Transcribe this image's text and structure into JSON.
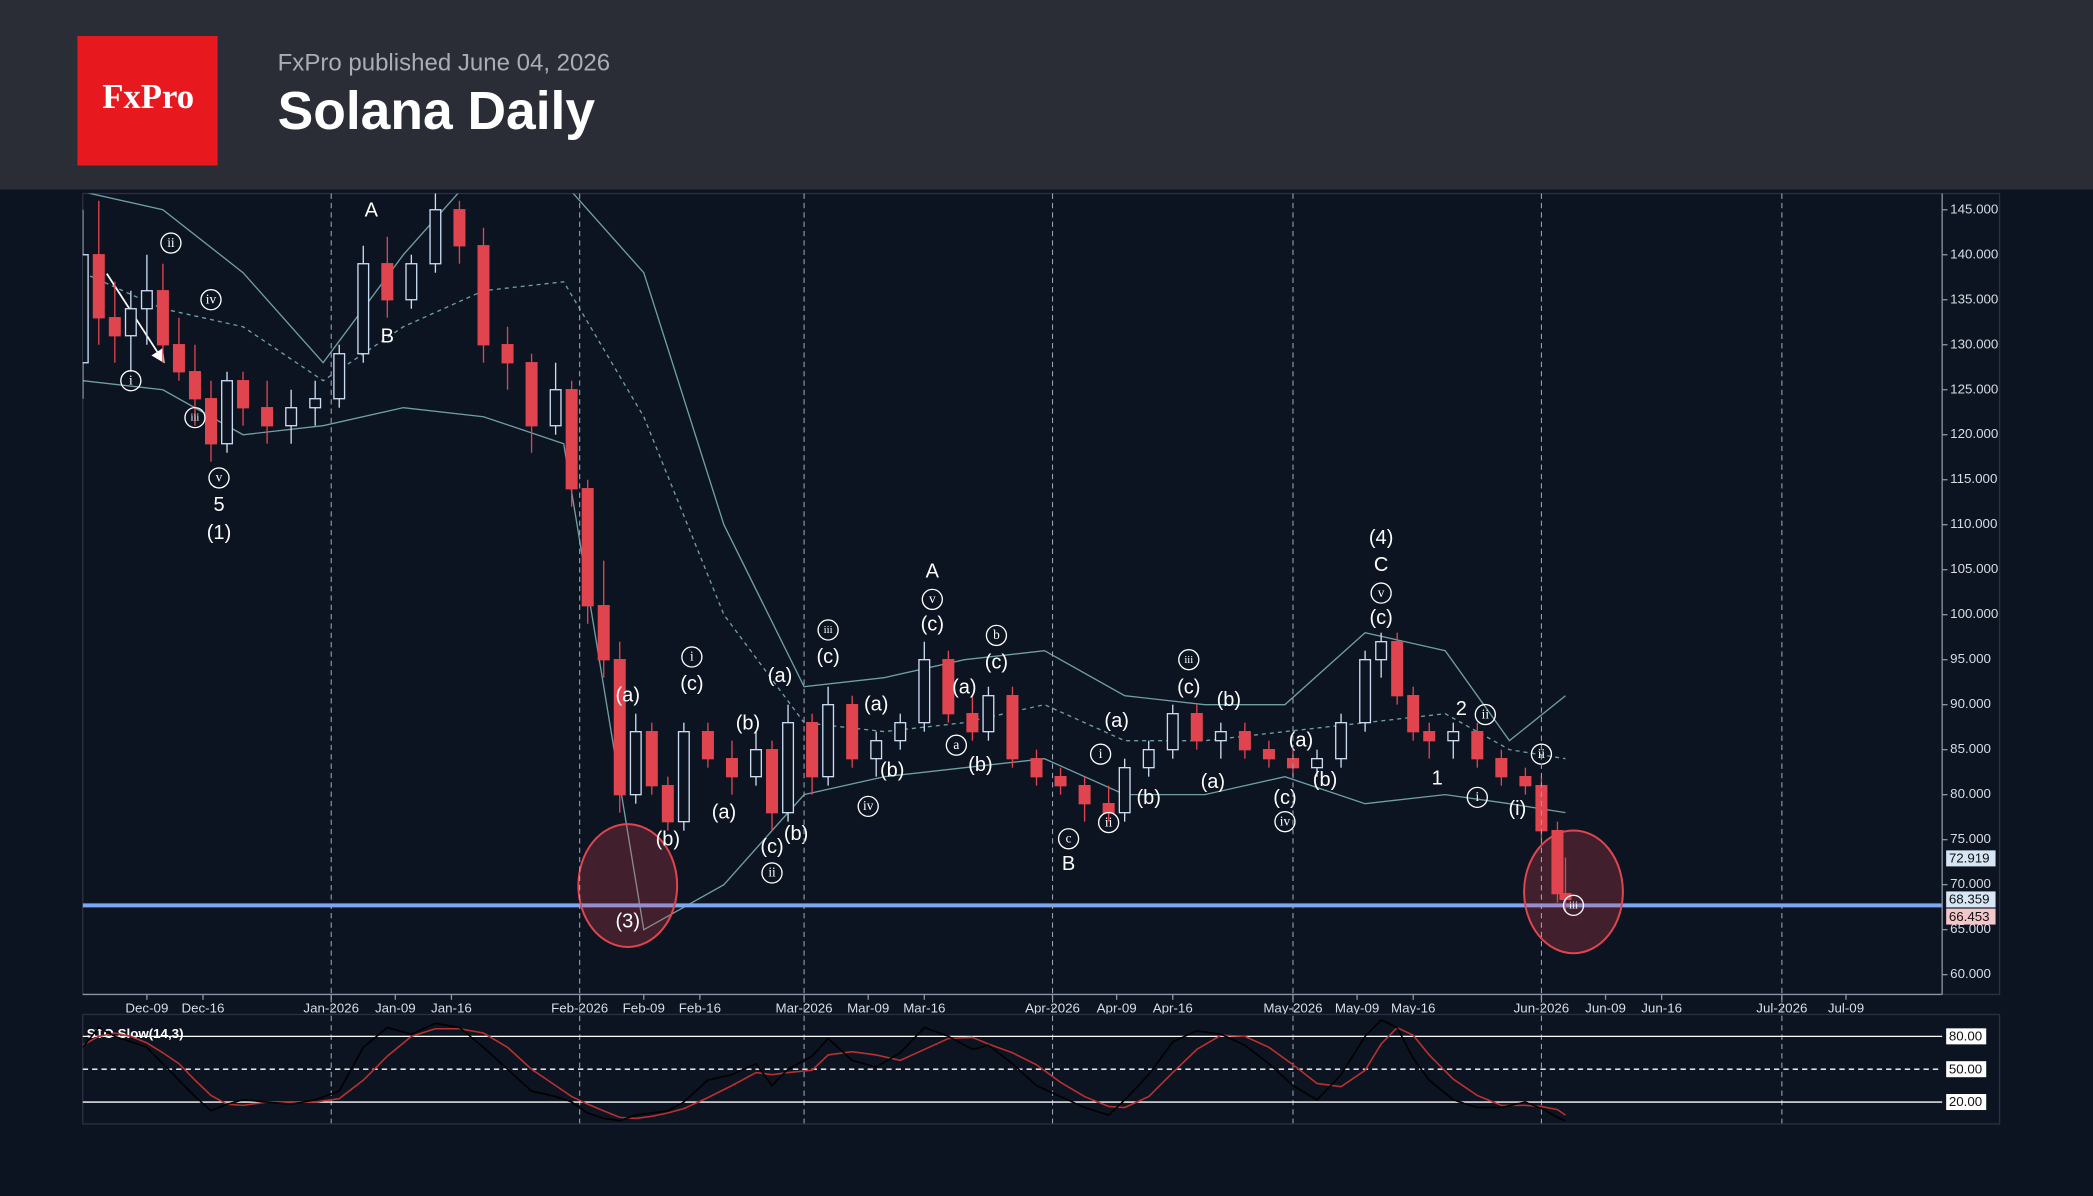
{
  "header": {
    "logo": "FxPro",
    "published": "FxPro published June 04, 2026",
    "title": "Solana Daily"
  },
  "chart_data": {
    "type": "candlestick",
    "x": [
      0,
      2,
      4,
      6,
      8,
      10,
      12,
      14,
      16,
      18,
      20,
      23,
      26,
      29,
      32,
      35,
      38,
      41,
      44,
      47,
      50,
      53,
      56,
      59,
      61,
      63,
      65,
      67,
      69,
      71,
      73,
      75,
      78,
      81,
      84,
      86,
      88,
      91,
      93,
      96,
      99,
      102,
      105,
      108,
      111,
      113,
      116,
      119,
      122,
      125,
      128,
      130,
      133,
      136,
      139,
      142,
      145,
      148,
      151,
      154,
      157,
      160,
      162,
      164,
      166,
      168,
      171,
      174,
      177,
      180,
      182,
      184,
      185
    ],
    "open": [
      128,
      140,
      133,
      131,
      134,
      136,
      130,
      127,
      124,
      119,
      126,
      123,
      121,
      123,
      124,
      129,
      139,
      135,
      139,
      145,
      141,
      130,
      128,
      121,
      125,
      114,
      101,
      95,
      80,
      87,
      81,
      77,
      87,
      84,
      82,
      85,
      78,
      88,
      82,
      90,
      84,
      86,
      88,
      95,
      89,
      87,
      91,
      84,
      82,
      81,
      79,
      78,
      83,
      85,
      89,
      86,
      87,
      85,
      84,
      83,
      84,
      88,
      95,
      97,
      91,
      87,
      86,
      87,
      84,
      82,
      81,
      76,
      69
    ],
    "high": [
      145,
      146,
      137,
      136,
      140,
      139,
      133,
      130,
      126,
      127,
      127,
      126,
      125,
      126,
      130,
      141,
      142,
      140,
      147,
      146,
      143,
      132,
      129,
      128,
      126,
      115,
      106,
      97,
      89,
      88,
      82,
      88,
      88,
      86,
      87,
      86,
      90,
      89,
      92,
      91,
      87,
      89,
      97,
      96,
      91,
      92,
      92,
      85,
      83,
      82,
      81,
      84,
      86,
      90,
      90,
      88,
      88,
      86,
      85,
      85,
      89,
      96,
      98,
      98,
      92,
      88,
      88,
      88,
      85,
      83,
      82,
      77,
      73
    ],
    "low": [
      124,
      130,
      128,
      127,
      130,
      128,
      126,
      121,
      117,
      118,
      121,
      119,
      119,
      121,
      123,
      128,
      133,
      134,
      138,
      139,
      128,
      125,
      118,
      120,
      112,
      99,
      93,
      78,
      79,
      80,
      76,
      76,
      83,
      80,
      81,
      76,
      77,
      80,
      81,
      83,
      82,
      85,
      87,
      88,
      86,
      86,
      83,
      81,
      80,
      77,
      77,
      77,
      82,
      84,
      85,
      84,
      84,
      83,
      82,
      82,
      83,
      87,
      93,
      90,
      86,
      84,
      84,
      83,
      81,
      80,
      75,
      68,
      67
    ],
    "close": [
      140,
      133,
      131,
      134,
      136,
      130,
      127,
      124,
      119,
      126,
      123,
      121,
      123,
      124,
      129,
      139,
      135,
      139,
      145,
      141,
      130,
      128,
      121,
      125,
      114,
      101,
      95,
      80,
      87,
      81,
      77,
      87,
      84,
      82,
      85,
      78,
      88,
      82,
      90,
      84,
      86,
      88,
      95,
      89,
      87,
      91,
      84,
      82,
      81,
      79,
      78,
      83,
      85,
      89,
      86,
      87,
      85,
      84,
      83,
      84,
      88,
      95,
      97,
      91,
      87,
      86,
      87,
      84,
      82,
      81,
      76,
      69,
      68.359
    ],
    "up_color": "#c9dcf2",
    "down_color": "#e0454f",
    "xlim": [
      0,
      232
    ],
    "xticks": [
      {
        "value": 8,
        "label": "Dec-09"
      },
      {
        "value": 15,
        "label": "Dec-16"
      },
      {
        "value": 31,
        "label": "Jan-2026"
      },
      {
        "value": 39,
        "label": "Jan-09"
      },
      {
        "value": 46,
        "label": "Jan-16"
      },
      {
        "value": 62,
        "label": "Feb-2026"
      },
      {
        "value": 70,
        "label": "Feb-09"
      },
      {
        "value": 77,
        "label": "Feb-16"
      },
      {
        "value": 90,
        "label": "Mar-2026"
      },
      {
        "value": 98,
        "label": "Mar-09"
      },
      {
        "value": 105,
        "label": "Mar-16"
      },
      {
        "value": 121,
        "label": "Apr-2026"
      },
      {
        "value": 129,
        "label": "Apr-09"
      },
      {
        "value": 136,
        "label": "Apr-16"
      },
      {
        "value": 151,
        "label": "May-2026"
      },
      {
        "value": 159,
        "label": "May-09"
      },
      {
        "value": 166,
        "label": "May-16"
      },
      {
        "value": 182,
        "label": "Jun-2026"
      },
      {
        "value": 190,
        "label": "Jun-09"
      },
      {
        "value": 197,
        "label": "Jun-16"
      },
      {
        "value": 212,
        "label": "Jul-2026"
      },
      {
        "value": 220,
        "label": "Jul-09"
      }
    ],
    "ylim": [
      57.8,
      146.8
    ],
    "yticks": [
      {
        "value": 60,
        "label": "60.000"
      },
      {
        "value": 65,
        "label": "65.000"
      },
      {
        "value": 70,
        "label": "70.000"
      },
      {
        "value": 75,
        "label": "75.000"
      },
      {
        "value": 80,
        "label": "80.000"
      },
      {
        "value": 85,
        "label": "85.000"
      },
      {
        "value": 90,
        "label": "90.000"
      },
      {
        "value": 95,
        "label": "95.000"
      },
      {
        "value": 100,
        "label": "100.000"
      },
      {
        "value": 105,
        "label": "105.000"
      },
      {
        "value": 110,
        "label": "110.000"
      },
      {
        "value": 115,
        "label": "115.000"
      },
      {
        "value": 120,
        "label": "120.000"
      },
      {
        "value": 125,
        "label": "125.000"
      },
      {
        "value": 130,
        "label": "130.000"
      },
      {
        "value": 135,
        "label": "135.000"
      },
      {
        "value": 140,
        "label": "140.000"
      },
      {
        "value": 145,
        "label": "145.000"
      }
    ],
    "bands": {
      "color": "#6f9fa3",
      "x": [
        0,
        10,
        20,
        30,
        40,
        50,
        60,
        70,
        80,
        90,
        100,
        110,
        120,
        130,
        140,
        150,
        160,
        170,
        178,
        185
      ],
      "upper": [
        147,
        145,
        138,
        128,
        140,
        150,
        148,
        138,
        110,
        92,
        93,
        95,
        96,
        91,
        90,
        90,
        98,
        96,
        86,
        91
      ],
      "middle": [
        138,
        134,
        132,
        126,
        132,
        136,
        137,
        122,
        100,
        88,
        87,
        88,
        90,
        86,
        86,
        87,
        88,
        89,
        85,
        84
      ],
      "lower": [
        126,
        125,
        120,
        121,
        123,
        122,
        119,
        65,
        70,
        80,
        82,
        83,
        84,
        80,
        80,
        82,
        79,
        80,
        79,
        78
      ]
    },
    "hline": {
      "value": 67.7,
      "color": "#7fa6f0"
    },
    "price_labels": [
      {
        "value": 72.919,
        "color": "#d7e6f5"
      },
      {
        "value": 68.359,
        "color": "#d7e6f5"
      },
      {
        "value": 66.453,
        "color": "#f3c6c9"
      }
    ],
    "annotations": [
      {
        "text": "i",
        "x": 6,
        "y": 126,
        "circled": true
      },
      {
        "text": "ii",
        "x": 11,
        "y": 141.3,
        "circled": true
      },
      {
        "text": "iii",
        "x": 14,
        "y": 121.9,
        "circled": true
      },
      {
        "text": "iv",
        "x": 16,
        "y": 135,
        "circled": true
      },
      {
        "text": "v",
        "x": 17,
        "y": 115.2,
        "circled": true
      },
      {
        "text": "5",
        "x": 17,
        "y": 112.2,
        "circled": false
      },
      {
        "text": "(1)",
        "x": 17,
        "y": 109.1,
        "circled": false
      },
      {
        "text": "A",
        "x": 36,
        "y": 144.9,
        "circled": false
      },
      {
        "text": "B",
        "x": 38,
        "y": 130.9,
        "circled": false
      },
      {
        "text": "(a)",
        "x": 68,
        "y": 91,
        "circled": false
      },
      {
        "text": "(b)",
        "x": 73,
        "y": 75,
        "circled": false
      },
      {
        "text": "(3)",
        "x": 68,
        "y": 65.9,
        "circled": false
      },
      {
        "text": "i",
        "x": 76,
        "y": 95.3,
        "circled": true
      },
      {
        "text": "(c)",
        "x": 76,
        "y": 92.3,
        "circled": false
      },
      {
        "text": "(a)",
        "x": 80,
        "y": 78,
        "circled": false
      },
      {
        "text": "(b)",
        "x": 83,
        "y": 87.9,
        "circled": false
      },
      {
        "text": "(c)",
        "x": 86,
        "y": 74.2,
        "circled": false
      },
      {
        "text": "ii",
        "x": 86,
        "y": 71.3,
        "circled": true
      },
      {
        "text": "(a)",
        "x": 87,
        "y": 93.2,
        "circled": false
      },
      {
        "text": "(b)",
        "x": 89,
        "y": 75.6,
        "circled": false
      },
      {
        "text": "iii",
        "x": 93,
        "y": 98.3,
        "circled": true
      },
      {
        "text": "(c)",
        "x": 93,
        "y": 95.3,
        "circled": false
      },
      {
        "text": "(a)",
        "x": 99,
        "y": 90,
        "circled": false
      },
      {
        "text": "(b)",
        "x": 101,
        "y": 82.7,
        "circled": false
      },
      {
        "text": "iv",
        "x": 98,
        "y": 78.7,
        "circled": true
      },
      {
        "text": "A",
        "x": 106,
        "y": 104.8,
        "circled": false
      },
      {
        "text": "v",
        "x": 106,
        "y": 101.7,
        "circled": true
      },
      {
        "text": "(c)",
        "x": 106,
        "y": 98.9,
        "circled": false
      },
      {
        "text": "(a)",
        "x": 110,
        "y": 91.9,
        "circled": false
      },
      {
        "text": "a",
        "x": 109,
        "y": 85.5,
        "circled": true
      },
      {
        "text": "b",
        "x": 114,
        "y": 97.7,
        "circled": true
      },
      {
        "text": "(c)",
        "x": 114,
        "y": 94.7,
        "circled": false
      },
      {
        "text": "(b)",
        "x": 112,
        "y": 83.3,
        "circled": false
      },
      {
        "text": "c",
        "x": 123,
        "y": 75.1,
        "circled": true
      },
      {
        "text": "B",
        "x": 123,
        "y": 72.3,
        "circled": false
      },
      {
        "text": "i",
        "x": 127,
        "y": 84.5,
        "circled": true
      },
      {
        "text": "(a)",
        "x": 129,
        "y": 88.2,
        "circled": false
      },
      {
        "text": "ii",
        "x": 128,
        "y": 76.9,
        "circled": true
      },
      {
        "text": "(b)",
        "x": 133,
        "y": 79.6,
        "circled": false
      },
      {
        "text": "iii",
        "x": 138,
        "y": 95,
        "circled": true
      },
      {
        "text": "(c)",
        "x": 138,
        "y": 91.9,
        "circled": false
      },
      {
        "text": "(b)",
        "x": 143,
        "y": 90.5,
        "circled": false
      },
      {
        "text": "(a)",
        "x": 141,
        "y": 81.4,
        "circled": false
      },
      {
        "text": "(a)",
        "x": 152,
        "y": 86,
        "circled": false
      },
      {
        "text": "(c)",
        "x": 150,
        "y": 79.6,
        "circled": false
      },
      {
        "text": "iv",
        "x": 150,
        "y": 77,
        "circled": true
      },
      {
        "text": "(b)",
        "x": 155,
        "y": 81.6,
        "circled": false
      },
      {
        "text": "(4)",
        "x": 162,
        "y": 108.5,
        "circled": false
      },
      {
        "text": "C",
        "x": 162,
        "y": 105.5,
        "circled": false
      },
      {
        "text": "v",
        "x": 162,
        "y": 102.4,
        "circled": true
      },
      {
        "text": "(c)",
        "x": 162,
        "y": 99.6,
        "circled": false
      },
      {
        "text": "1",
        "x": 169,
        "y": 81.8,
        "circled": false
      },
      {
        "text": "2",
        "x": 172,
        "y": 89.5,
        "circled": false
      },
      {
        "text": "ii",
        "x": 175,
        "y": 88.9,
        "circled": true
      },
      {
        "text": "i",
        "x": 174,
        "y": 79.7,
        "circled": true
      },
      {
        "text": "(i)",
        "x": 179,
        "y": 78.4,
        "circled": false
      },
      {
        "text": "ii",
        "x": 182,
        "y": 84.5,
        "circled": true
      },
      {
        "text": "iii",
        "x": 186,
        "y": 67.7,
        "circled": true
      }
    ],
    "highlights": [
      {
        "x": 68,
        "y": 69.9,
        "color": "#e0454f"
      },
      {
        "x": 186,
        "y": 69.2,
        "color": "#e0454f"
      }
    ],
    "oscillator": {
      "title": "STO Slow(14,3)",
      "ylim": [
        0,
        100
      ],
      "yticks": [
        {
          "value": 80,
          "label": "80.00"
        },
        {
          "value": 50,
          "label": "50.00"
        },
        {
          "value": 20,
          "label": "20.00"
        }
      ],
      "k_color": "#000000",
      "d_color": "#b8312f",
      "k": [
        70,
        88,
        80,
        75,
        70,
        55,
        40,
        25,
        12,
        18,
        22,
        20,
        18,
        22,
        30,
        70,
        88,
        82,
        92,
        88,
        70,
        50,
        30,
        25,
        20,
        10,
        5,
        3,
        8,
        10,
        12,
        20,
        40,
        45,
        55,
        35,
        50,
        62,
        78,
        58,
        52,
        65,
        88,
        80,
        68,
        72,
        55,
        35,
        25,
        15,
        8,
        22,
        45,
        75,
        85,
        82,
        72,
        55,
        35,
        22,
        45,
        80,
        95,
        88,
        60,
        40,
        22,
        15,
        15,
        20,
        14,
        6,
        3
      ],
      "d": [
        72,
        80,
        83,
        80,
        74,
        65,
        55,
        40,
        26,
        18,
        17,
        20,
        20,
        20,
        23,
        40,
        62,
        80,
        87,
        87,
        83,
        70,
        50,
        35,
        25,
        18,
        12,
        6,
        5,
        7,
        10,
        14,
        24,
        35,
        47,
        45,
        47,
        49,
        63,
        66,
        63,
        58,
        68,
        78,
        79,
        73,
        65,
        54,
        38,
        25,
        16,
        15,
        25,
        47,
        68,
        81,
        80,
        70,
        54,
        37,
        34,
        49,
        73,
        88,
        81,
        63,
        41,
        26,
        17,
        17,
        16,
        13,
        8
      ]
    }
  }
}
